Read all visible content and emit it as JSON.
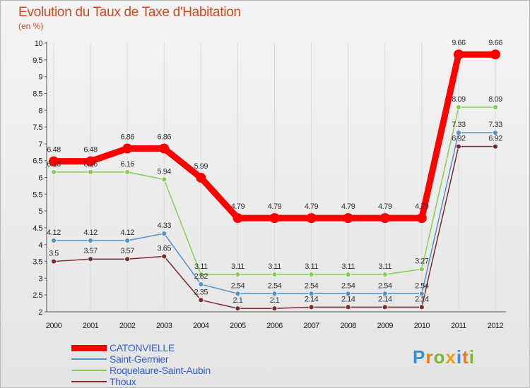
{
  "title": "Evolution du Taux de Taxe d'Habitation",
  "unit": "(en %)",
  "logo": {
    "letters": [
      "P",
      "r",
      "o",
      "x",
      "i",
      "t",
      "i"
    ],
    "colors": [
      "#3a8fd0",
      "#e57b1e",
      "#78b82a",
      "#e3a21a",
      "#3a8fd0",
      "#e57b1e",
      "#78b82a"
    ]
  },
  "chart_data": {
    "type": "line",
    "title": "Evolution du Taux de Taxe d'Habitation",
    "ylabel": "(en %)",
    "x": [
      "2000",
      "2001",
      "2002",
      "2003",
      "2004",
      "2005",
      "2006",
      "2007",
      "2008",
      "2009",
      "2010",
      "2011",
      "2012"
    ],
    "ylim": [
      2,
      10
    ],
    "yticks": [
      "2",
      "2.5",
      "3",
      "3.5",
      "4",
      "4.5",
      "5",
      "5.5",
      "6",
      "6.5",
      "7",
      "7.5",
      "8",
      "8.5",
      "9",
      "9.5",
      "10"
    ],
    "grid": "vertical",
    "legend": "bottom-left",
    "series": [
      {
        "name": "CATONVIELLE",
        "color": "#ff0000",
        "values": [
          6.48,
          6.48,
          6.86,
          6.86,
          5.99,
          4.79,
          4.79,
          4.79,
          4.79,
          4.79,
          4.79,
          9.66,
          9.66
        ],
        "labels": [
          "6.48",
          "6.48",
          "6.86",
          "6.86",
          "5.99",
          "4.79",
          "4.79",
          "4.79",
          "4.79",
          "4.79",
          "4.79",
          "9.66",
          "9.66"
        ]
      },
      {
        "name": "Saint-Germier",
        "color": "#5590c8",
        "values": [
          4.12,
          4.12,
          4.12,
          4.33,
          2.82,
          2.54,
          2.54,
          2.54,
          2.54,
          2.54,
          2.54,
          7.33,
          7.33
        ],
        "labels": [
          "4.12",
          "4.12",
          "4.12",
          "4.33",
          "2.82",
          "2.54",
          "2.54",
          "2.54",
          "2.54",
          "2.54",
          "2.54",
          "7.33",
          "7.33"
        ]
      },
      {
        "name": "Roquelaure-Saint-Aubin",
        "color": "#88cc55",
        "values": [
          6.16,
          6.16,
          6.16,
          5.94,
          3.11,
          3.11,
          3.11,
          3.11,
          3.11,
          3.11,
          3.27,
          8.09,
          8.09
        ],
        "labels": [
          "6.16",
          "6.16",
          "6.16",
          "5.94",
          "3.11",
          "3.11",
          "3.11",
          "3.11",
          "3.11",
          "3.11",
          "3.27",
          "8.09",
          "8.09"
        ]
      },
      {
        "name": "Thoux",
        "color": "#7a2a2a",
        "values": [
          3.5,
          3.57,
          3.57,
          3.65,
          2.35,
          2.1,
          2.1,
          2.14,
          2.14,
          2.14,
          2.14,
          6.92,
          6.92
        ],
        "labels": [
          "3.5",
          "3.57",
          "3.57",
          "3.65",
          "2.35",
          "2.1",
          "2.1",
          "2.14",
          "2.14",
          "2.14",
          "2.14",
          "6.92",
          "6.92"
        ]
      }
    ]
  }
}
